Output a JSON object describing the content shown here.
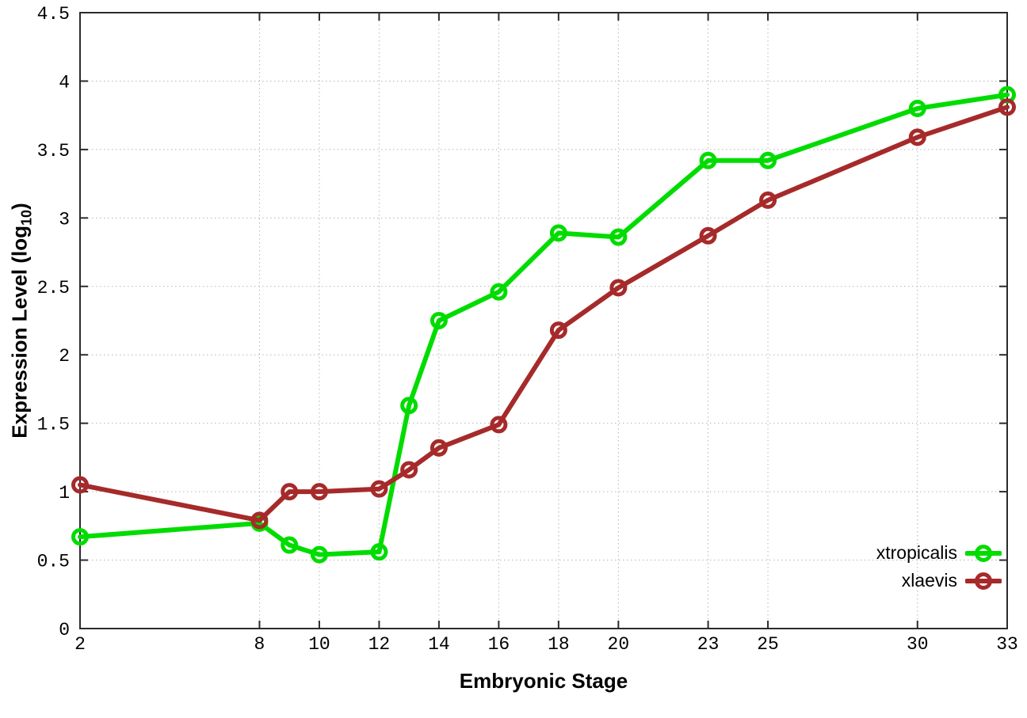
{
  "chart_data": {
    "type": "line",
    "title": "",
    "xlabel": "Embryonic Stage",
    "ylabel": "Expression Level (log10)",
    "ylabel_parts": {
      "main": "Expression Level (log",
      "sub": "10",
      "close": ")"
    },
    "xlim": [
      2,
      33
    ],
    "ylim": [
      0,
      4.5
    ],
    "grid": "dotted",
    "legend_position": "inside-bottom-right",
    "x_ticks": [
      2,
      8,
      10,
      12,
      14,
      16,
      18,
      20,
      23,
      25,
      30,
      33
    ],
    "x_tick_labels": [
      "2",
      "8",
      "10",
      "12",
      "14",
      "16",
      "18",
      "20",
      "23",
      "25",
      "30",
      "33"
    ],
    "y_ticks": [
      0,
      0.5,
      1,
      1.5,
      2,
      2.5,
      3,
      3.5,
      4,
      4.5
    ],
    "y_tick_labels": [
      "0",
      "0.5",
      "1",
      "1.5",
      "2",
      "2.5",
      "3",
      "3.5",
      "4",
      "4.5"
    ],
    "x": [
      2,
      8,
      9,
      10,
      12,
      13,
      14,
      16,
      18,
      20,
      23,
      25,
      30,
      33
    ],
    "series": [
      {
        "name": "xtropicalis",
        "color": "#00dc00",
        "values": [
          0.67,
          0.77,
          0.61,
          0.54,
          0.56,
          1.63,
          2.25,
          2.46,
          2.89,
          2.86,
          3.42,
          3.42,
          3.8,
          3.9
        ]
      },
      {
        "name": "xlaevis",
        "color": "#a62a2a",
        "values": [
          1.05,
          0.79,
          1.0,
          1.0,
          1.02,
          1.16,
          1.32,
          1.49,
          2.18,
          2.49,
          2.87,
          3.13,
          3.59,
          3.81
        ]
      }
    ],
    "style": {
      "border_color": "#2b2b2b",
      "grid_color": "#b5b5b5",
      "background": "#ffffff",
      "line_width": 6,
      "marker": "open-circle",
      "marker_radius": 8.5,
      "marker_stroke": 5
    }
  }
}
